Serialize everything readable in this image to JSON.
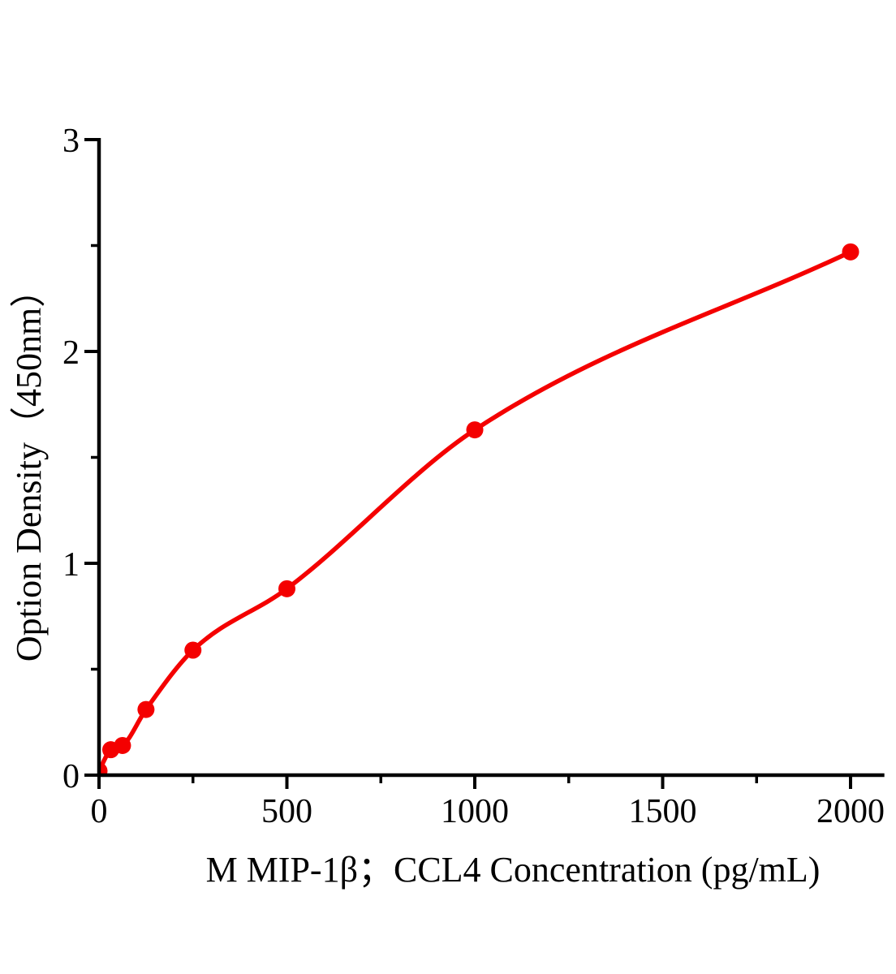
{
  "page": {
    "background_color": "#ffffff",
    "text_color": "#000000"
  },
  "chart_data": {
    "type": "scatter",
    "subtype": "elisa-standard-curve-with-fit-line",
    "title": "",
    "xlabel": "M MIP-1β；CCL4 Concentration (pg/mL)",
    "ylabel": "Option Density（450nm）",
    "x": [
      0,
      31.25,
      62.5,
      125,
      250,
      500,
      1000,
      2000
    ],
    "y": [
      0.02,
      0.12,
      0.14,
      0.31,
      0.59,
      0.88,
      1.63,
      2.47
    ],
    "fit_curve": true,
    "xlim": [
      0,
      2090
    ],
    "ylim": [
      0,
      3
    ],
    "xticks": {
      "major": [
        0,
        500,
        1000,
        1500,
        2000
      ],
      "minor": [
        250,
        750,
        1250,
        1750
      ],
      "labels": [
        "0",
        "500",
        "1000",
        "1500",
        "2000"
      ]
    },
    "yticks": {
      "major": [
        0,
        1,
        2,
        3
      ],
      "minor": [
        0.5,
        1.5,
        2.5
      ],
      "labels": [
        "0",
        "1",
        "2",
        "3"
      ]
    },
    "grid": false,
    "legend": "none",
    "marker_shape": "circle",
    "marker_color": "#f40000",
    "line_color": "#f40000",
    "axis_color": "#000000"
  }
}
